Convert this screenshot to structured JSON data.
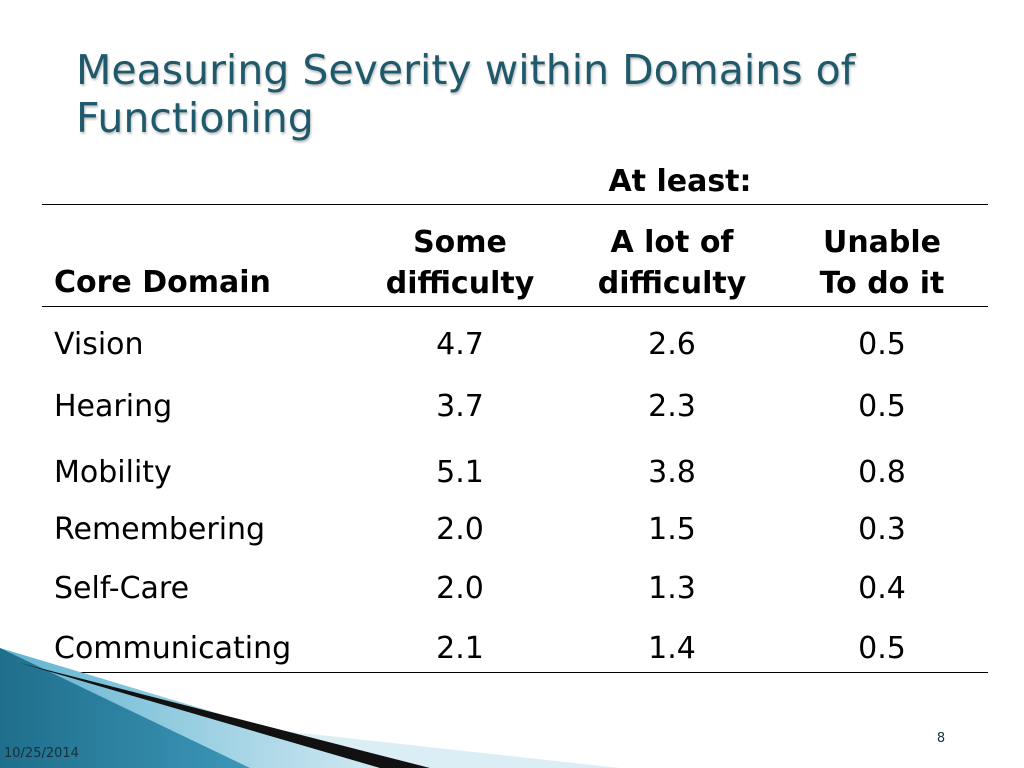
{
  "slide": {
    "title": "Measuring Severity within Domains of Functioning",
    "date": "10/25/2014",
    "page_number": "8"
  },
  "table": {
    "group_header": "At least:",
    "headers": [
      [
        "Core Domain"
      ],
      [
        "Some",
        "difficulty"
      ],
      [
        "A lot of",
        "difficulty"
      ],
      [
        "Unable",
        "To do it"
      ]
    ],
    "rows": [
      [
        "Vision",
        "4.7",
        "2.6",
        "0.5"
      ],
      [
        "Hearing",
        "3.7",
        "2.3",
        "0.5"
      ],
      [
        "Mobility",
        "5.1",
        "3.8",
        "0.8"
      ],
      [
        "Remembering",
        "2.0",
        "1.5",
        "0.3"
      ],
      [
        "Self-Care",
        "2.0",
        "1.3",
        "0.4"
      ],
      [
        "Communicating",
        "2.1",
        "1.4",
        "0.5"
      ]
    ]
  },
  "colors": {
    "title": "#1e5a6c",
    "accent_dark": "#1f6e8c",
    "accent_light": "#5fb3d0"
  }
}
